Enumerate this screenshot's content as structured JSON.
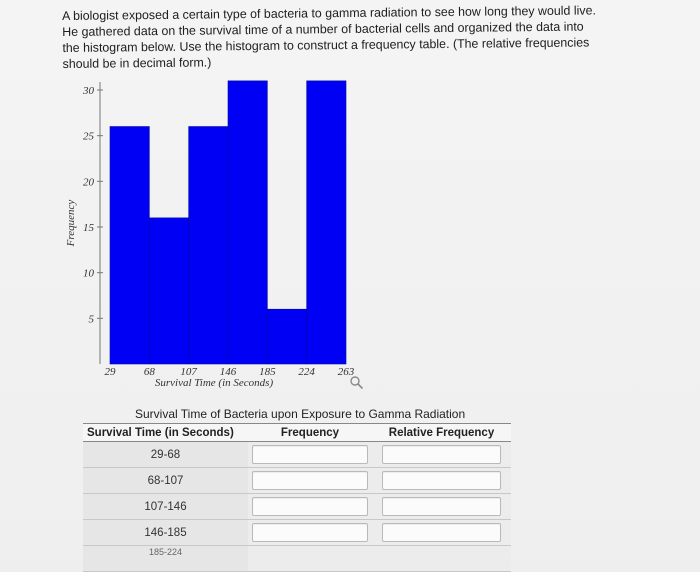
{
  "question": {
    "text": "A biologist exposed a certain type of bacteria to gamma radiation to see how long they would live. He gathered data on the survival time of a number of bacterial cells and organized the data into the histogram below. Use the histogram to construct a frequency table. (The relative frequencies should be in decimal form.)"
  },
  "chart_data": {
    "type": "bar",
    "histogram": true,
    "xlabel": "Survival Time (in Seconds)",
    "ylabel": "Frequency",
    "bin_edges": [
      29,
      68,
      107,
      146,
      185,
      224,
      263
    ],
    "x_ticks": [
      "29",
      "68",
      "107",
      "146",
      "185",
      "224",
      "263"
    ],
    "y_ticks": [
      "5",
      "10",
      "15",
      "20",
      "25",
      "30"
    ],
    "ylim": [
      0,
      30
    ],
    "categories": [
      "29-68",
      "68-107",
      "107-146",
      "146-185",
      "185-224",
      "224-263"
    ],
    "values": [
      26,
      16,
      26,
      31,
      6,
      31
    ],
    "bar_color": "#0000f5",
    "grid": false
  },
  "zoom_icon": "magnifier-icon",
  "table": {
    "caption": "Survival Time of Bacteria upon Exposure to Gamma Radiation",
    "headers": [
      "Survival Time (in Seconds)",
      "Frequency",
      "Relative Frequency"
    ],
    "rows": [
      "29-68",
      "68-107",
      "107-146",
      "146-185"
    ],
    "cut_row": "185-224"
  }
}
